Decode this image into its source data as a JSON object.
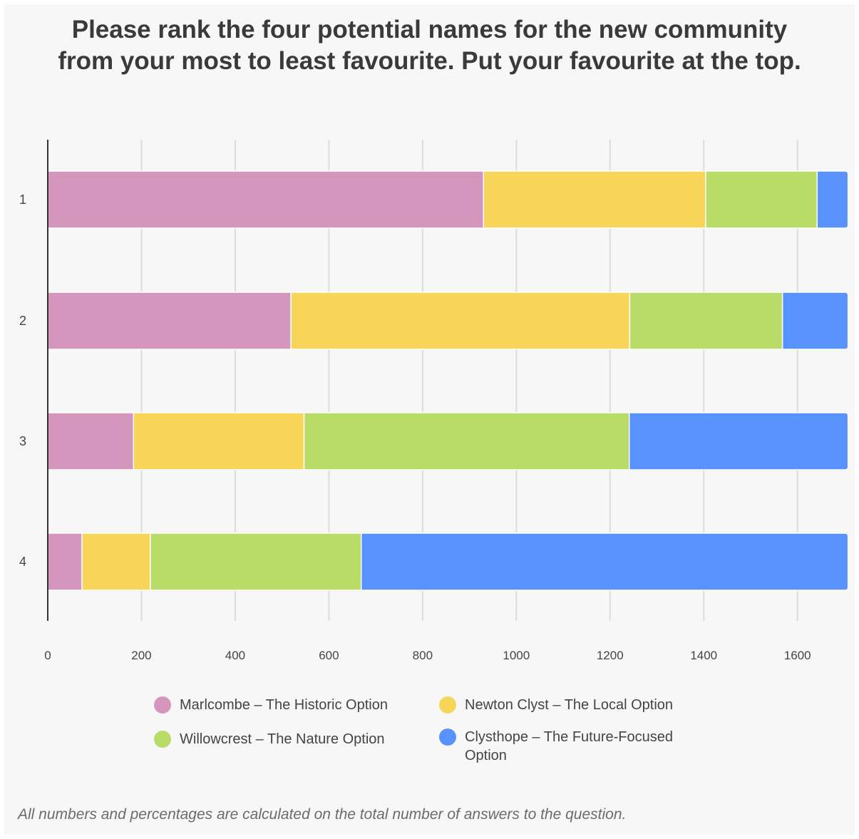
{
  "chart_data": {
    "type": "bar",
    "orientation": "horizontal",
    "stacked": true,
    "title": "Please rank the four potential names for the new community from your most to least favourite. Put your favourite at the top.",
    "xlabel": "",
    "ylabel": "",
    "categories": [
      "1",
      "2",
      "3",
      "4"
    ],
    "xlim": [
      0,
      1710
    ],
    "xticks": [
      0,
      200,
      400,
      600,
      800,
      1000,
      1200,
      1400,
      1600
    ],
    "grid": true,
    "legend_position": "bottom",
    "series": [
      {
        "name": "Marlcombe – The Historic Option",
        "color": "#d596be",
        "values": [
          930,
          519,
          183,
          73
        ]
      },
      {
        "name": "Newton Clyst – The Local Option",
        "color": "#f7d558",
        "values": [
          474,
          723,
          364,
          146
        ]
      },
      {
        "name": "Willowcrest – The Nature Option",
        "color": "#b9dc68",
        "values": [
          238,
          326,
          694,
          450
        ]
      },
      {
        "name": "Clysthope – The Future-Focused Option",
        "color": "#5892fd",
        "values": [
          66,
          140,
          467,
          1039
        ]
      }
    ]
  },
  "footnote": "All numbers and percentages are calculated on the total number of answers to the question."
}
